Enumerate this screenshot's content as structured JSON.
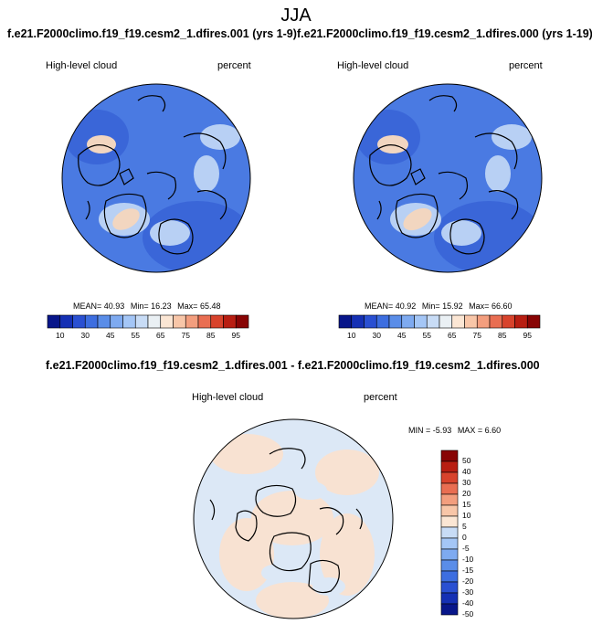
{
  "season": "JJA",
  "top_left": {
    "title": "f.e21.F2000climo.f19_f19.cesm2_1.dfires.001 (yrs 1-9)",
    "variable": "High-level cloud",
    "units": "percent",
    "mean_label": "MEAN=",
    "mean": "40.93",
    "min_label": "Min=",
    "min": "16.23",
    "max_label": "Max=",
    "max": "65.48"
  },
  "top_right": {
    "title": "f.e21.F2000climo.f19_f19.cesm2_1.dfires.000 (yrs 1-19)",
    "variable": "High-level cloud",
    "units": "percent",
    "mean_label": "MEAN=",
    "mean": "40.92",
    "min_label": "Min=",
    "min": "15.92",
    "max_label": "Max=",
    "max": "66.60"
  },
  "diff": {
    "title": "f.e21.F2000climo.f19_f19.cesm2_1.dfires.001 - f.e21.F2000climo.f19_f19.cesm2_1.dfires.000",
    "variable": "High-level cloud",
    "units": "percent",
    "min_label": "MIN =",
    "min": "-5.93",
    "max_label": "MAX =",
    "max": "6.60"
  },
  "abs_colorbar": {
    "colors": [
      "#08168a",
      "#1530b4",
      "#2a50d2",
      "#3d6ee0",
      "#5a8de8",
      "#7eaaf0",
      "#a4c6f6",
      "#c8dcf6",
      "#eaf0f4",
      "#fbe6d4",
      "#f8c6a8",
      "#f39e7e",
      "#e96e52",
      "#d8432c",
      "#b81e12",
      "#880404"
    ],
    "ticks": [
      "10",
      "30",
      "45",
      "55",
      "65",
      "75",
      "85",
      "95"
    ]
  },
  "diff_colorbar": {
    "colors": [
      "#08168a",
      "#1530b4",
      "#2a50d2",
      "#3d6ee0",
      "#5a8de8",
      "#7eaaf0",
      "#a4c6f6",
      "#c8dcf6",
      "#fbe6d4",
      "#f8c6a8",
      "#f39e7e",
      "#e96e52",
      "#d8432c",
      "#b81e12",
      "#880404"
    ],
    "ticks": [
      "50",
      "40",
      "30",
      "20",
      "15",
      "10",
      "5",
      "0",
      "-5",
      "-10",
      "-15",
      "-20",
      "-30",
      "-40",
      "-50"
    ]
  },
  "map_colors": {
    "ocean_abs": "#4a7ae2",
    "ocean_abs_dark": "#3a66d8",
    "high_abs": "#f2d6c0",
    "low_abs": "#b8d0f4",
    "diff_base": "#dce8f6",
    "diff_warm": "#f8e2d2",
    "coast": "#000000"
  }
}
